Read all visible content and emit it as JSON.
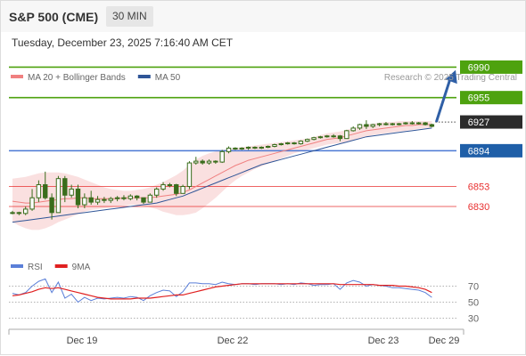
{
  "header": {
    "title": "S&P 500 (CME)",
    "interval": "30 MIN"
  },
  "datetime": "Tuesday, December 23, 2025 7:16:40 AM CET",
  "credit": "Research © 2025 Trading Central",
  "colors": {
    "resistance": "#4ea20f",
    "pivot": "#2b2b2b",
    "support_line": "#4a78d4",
    "support_label": "#1f5fa8",
    "target": "#e83030",
    "ma20": "#f08080",
    "ma50": "#2f5597",
    "bollinger_fill": "#f9dada",
    "candle": "#3a6d1c",
    "arrow": "#2f5fa6",
    "rsi": "#5b7fd8",
    "rsi_ma": "#e02020"
  },
  "chart_data": [
    {
      "type": "candlestick",
      "legend": [
        {
          "name": "MA 20 + Bollinger Bands",
          "color": "#f08080"
        },
        {
          "name": "MA 50",
          "color": "#2f5597"
        }
      ],
      "levels": [
        {
          "value": 6990,
          "label": "6990",
          "kind": "resistance",
          "color": "#4ea20f"
        },
        {
          "value": 6955,
          "label": "6955",
          "kind": "resistance",
          "color": "#4ea20f"
        },
        {
          "value": 6927,
          "label": "6927",
          "kind": "last",
          "color": "#2b2b2b"
        },
        {
          "value": 6894,
          "label": "6894",
          "kind": "support",
          "color": "#1f5fa8"
        },
        {
          "value": 6853,
          "label": "6853",
          "kind": "target",
          "color": "#e83030"
        },
        {
          "value": 6830,
          "label": "6830",
          "kind": "target",
          "color": "#e83030"
        }
      ],
      "x_labels": [
        "Dec 19",
        "Dec 22",
        "Dec 23",
        "Dec 29"
      ],
      "ohlc": [
        [
          6823,
          6825,
          6821,
          6823
        ],
        [
          6823,
          6824,
          6820,
          6822
        ],
        [
          6822,
          6830,
          6820,
          6827
        ],
        [
          6827,
          6850,
          6825,
          6840
        ],
        [
          6840,
          6860,
          6835,
          6855
        ],
        [
          6855,
          6870,
          6838,
          6840
        ],
        [
          6840,
          6845,
          6815,
          6823
        ],
        [
          6823,
          6865,
          6823,
          6862
        ],
        [
          6862,
          6865,
          6835,
          6843
        ],
        [
          6843,
          6855,
          6840,
          6850
        ],
        [
          6850,
          6855,
          6828,
          6832
        ],
        [
          6832,
          6845,
          6828,
          6840
        ],
        [
          6840,
          6848,
          6832,
          6835
        ],
        [
          6835,
          6842,
          6832,
          6838
        ],
        [
          6838,
          6841,
          6834,
          6837
        ],
        [
          6837,
          6841,
          6834,
          6839
        ],
        [
          6839,
          6842,
          6836,
          6840
        ],
        [
          6840,
          6843,
          6837,
          6839
        ],
        [
          6839,
          6844,
          6837,
          6842
        ],
        [
          6842,
          6843,
          6837,
          6840
        ],
        [
          6840,
          6840,
          6833,
          6835
        ],
        [
          6835,
          6845,
          6835,
          6843
        ],
        [
          6843,
          6852,
          6840,
          6850
        ],
        [
          6850,
          6858,
          6848,
          6855
        ],
        [
          6855,
          6857,
          6852,
          6855
        ],
        [
          6855,
          6856,
          6842,
          6845
        ],
        [
          6845,
          6855,
          6845,
          6853
        ],
        [
          6853,
          6882,
          6850,
          6880
        ],
        [
          6880,
          6887,
          6878,
          6882
        ],
        [
          6882,
          6884,
          6878,
          6880
        ],
        [
          6880,
          6884,
          6878,
          6882
        ],
        [
          6882,
          6883,
          6879,
          6881
        ],
        [
          6881,
          6895,
          6880,
          6893
        ],
        [
          6893,
          6899,
          6891,
          6897
        ],
        [
          6897,
          6898,
          6895,
          6896
        ],
        [
          6896,
          6898,
          6895,
          6897
        ],
        [
          6897,
          6899,
          6895,
          6898
        ],
        [
          6898,
          6899,
          6896,
          6897
        ],
        [
          6897,
          6899,
          6896,
          6898
        ],
        [
          6898,
          6900,
          6897,
          6899
        ],
        [
          6899,
          6902,
          6898,
          6901
        ],
        [
          6901,
          6903,
          6900,
          6902
        ],
        [
          6902,
          6904,
          6901,
          6903
        ],
        [
          6903,
          6904,
          6901,
          6902
        ],
        [
          6902,
          6906,
          6901,
          6905
        ],
        [
          6905,
          6908,
          6904,
          6907
        ],
        [
          6907,
          6910,
          6906,
          6909
        ],
        [
          6909,
          6911,
          6908,
          6910
        ],
        [
          6910,
          6912,
          6909,
          6911
        ],
        [
          6911,
          6913,
          6909,
          6911
        ],
        [
          6911,
          6912,
          6905,
          6908
        ],
        [
          6908,
          6918,
          6908,
          6917
        ],
        [
          6917,
          6922,
          6916,
          6920
        ],
        [
          6920,
          6925,
          6918,
          6924
        ],
        [
          6924,
          6929,
          6919,
          6922
        ],
        [
          6922,
          6925,
          6920,
          6924
        ],
        [
          6924,
          6926,
          6922,
          6925
        ],
        [
          6925,
          6927,
          6923,
          6925
        ],
        [
          6925,
          6926,
          6923,
          6924
        ],
        [
          6924,
          6926,
          6923,
          6925
        ],
        [
          6925,
          6927,
          6924,
          6926
        ],
        [
          6926,
          6928,
          6924,
          6925
        ],
        [
          6925,
          6927,
          6924,
          6926
        ],
        [
          6926,
          6927,
          6923,
          6924
        ],
        [
          6924,
          6925,
          6921,
          6922
        ]
      ],
      "ma20": [
        6836,
        6835,
        6834,
        6834,
        6835,
        6836,
        6837,
        6838,
        6839,
        6839,
        6840,
        6840,
        6839,
        6839,
        6839,
        6839,
        6839,
        6840,
        6840,
        6840,
        6840,
        6840,
        6841,
        6842,
        6843,
        6844,
        6846,
        6849,
        6853,
        6857,
        6861,
        6865,
        6869,
        6873,
        6877,
        6880,
        6883,
        6885,
        6887,
        6889,
        6891,
        6893,
        6895,
        6897,
        6899,
        6901,
        6903,
        6905,
        6907,
        6908,
        6909,
        6911,
        6913,
        6915,
        6917,
        6918,
        6919,
        6920,
        6921,
        6922,
        6923,
        6923,
        6924,
        6924,
        6924
      ],
      "bb_upper": [
        6862,
        6863,
        6864,
        6866,
        6868,
        6869,
        6869,
        6869,
        6868,
        6866,
        6864,
        6861,
        6858,
        6855,
        6852,
        6850,
        6849,
        6848,
        6848,
        6849,
        6850,
        6852,
        6855,
        6858,
        6862,
        6866,
        6871,
        6878,
        6884,
        6888,
        6891,
        6893,
        6895,
        6896,
        6897,
        6898,
        6899,
        6900,
        6901,
        6902,
        6903,
        6904,
        6905,
        6906,
        6907,
        6908,
        6910,
        6912,
        6914,
        6915,
        6916,
        6918,
        6920,
        6922,
        6924,
        6925,
        6926,
        6927,
        6927,
        6928,
        6928,
        6928,
        6928,
        6928,
        6928
      ],
      "bb_lower": [
        6812,
        6808,
        6805,
        6803,
        6803,
        6805,
        6808,
        6812,
        6815,
        6818,
        6821,
        6824,
        6826,
        6827,
        6828,
        6829,
        6830,
        6831,
        6832,
        6832,
        6831,
        6829,
        6827,
        6824,
        6822,
        6820,
        6820,
        6821,
        6823,
        6828,
        6834,
        6840,
        6847,
        6854,
        6860,
        6865,
        6869,
        6873,
        6876,
        6879,
        6882,
        6885,
        6888,
        6891,
        6893,
        6895,
        6897,
        6899,
        6901,
        6902,
        6903,
        6904,
        6906,
        6908,
        6910,
        6912,
        6913,
        6914,
        6915,
        6916,
        6917,
        6918,
        6919,
        6920,
        6920
      ],
      "ma50": [
        6812,
        6813,
        6814,
        6815,
        6816,
        6817,
        6818,
        6819,
        6820,
        6821,
        6822,
        6823,
        6824,
        6825,
        6826,
        6827,
        6828,
        6829,
        6830,
        6831,
        6832,
        6833,
        6834,
        6836,
        6838,
        6840,
        6842,
        6845,
        6848,
        6851,
        6854,
        6857,
        6860,
        6863,
        6866,
        6869,
        6872,
        6875,
        6878,
        6880,
        6882,
        6884,
        6886,
        6888,
        6890,
        6892,
        6894,
        6896,
        6898,
        6900,
        6902,
        6904,
        6906,
        6908,
        6910,
        6911,
        6912,
        6913,
        6914,
        6915,
        6916,
        6917,
        6918,
        6919,
        6920
      ],
      "forecast": {
        "from": 6927,
        "to": 6990
      }
    },
    {
      "type": "line",
      "legend": [
        {
          "name": "RSI",
          "color": "#5b7fd8"
        },
        {
          "name": "9MA",
          "color": "#e02020"
        }
      ],
      "y_ticks": [
        70,
        50,
        30
      ],
      "ylim": [
        25,
        80
      ],
      "series": [
        {
          "name": "RSI",
          "values": [
            61,
            59,
            62,
            70,
            76,
            79,
            62,
            75,
            55,
            60,
            50,
            56,
            52,
            55,
            54,
            55,
            56,
            55,
            57,
            56,
            52,
            58,
            62,
            65,
            64,
            57,
            63,
            74,
            74,
            73,
            73,
            72,
            75,
            73,
            72,
            73,
            73,
            72,
            73,
            73,
            73,
            72,
            73,
            72,
            74,
            73,
            71,
            72,
            72,
            73,
            66,
            74,
            77,
            75,
            70,
            72,
            71,
            70,
            68,
            68,
            67,
            66,
            65,
            62,
            56
          ]
        },
        {
          "name": "9MA",
          "values": [
            58,
            59,
            61,
            63,
            66,
            68,
            67,
            68,
            66,
            64,
            62,
            60,
            58,
            56,
            55,
            54,
            54,
            54,
            54,
            55,
            55,
            55,
            56,
            57,
            58,
            59,
            59,
            61,
            63,
            65,
            67,
            69,
            70,
            71,
            72,
            73,
            73,
            73,
            73,
            73,
            73,
            73,
            73,
            73,
            73,
            73,
            73,
            73,
            73,
            73,
            72,
            72,
            72,
            72,
            72,
            72,
            71,
            71,
            71,
            70,
            70,
            69,
            68,
            66,
            62
          ]
        }
      ]
    }
  ]
}
